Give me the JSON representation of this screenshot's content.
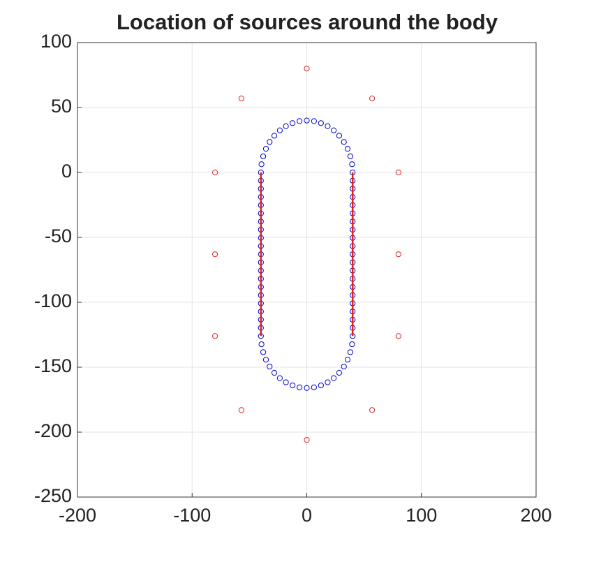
{
  "chart_data": {
    "type": "scatter",
    "title": "Location of sources around the body",
    "xlim": [
      -200,
      200
    ],
    "xticks": [
      -200,
      -100,
      0,
      100,
      200
    ],
    "ylim": [
      -250,
      100
    ],
    "yticks": [
      -250,
      -200,
      -150,
      -100,
      -50,
      0,
      50,
      100
    ],
    "grid": true,
    "series": [
      {
        "color": "#0000cc",
        "marker": "circle",
        "x": [
          40,
          39.5,
          38.0,
          35.6,
          32.4,
          28.3,
          23.5,
          18.2,
          12.4,
          6.3,
          0,
          -6.3,
          -12.4,
          -18.2,
          -23.5,
          -28.3,
          -32.4,
          -35.6,
          -38.0,
          -39.5,
          -40,
          -40,
          -40,
          -40,
          -40,
          -40,
          -40,
          -40,
          -40,
          -40,
          -40,
          -40,
          -40,
          -40,
          -40,
          -40,
          -40,
          -40,
          -40,
          -40,
          -40,
          -39.5,
          -38.0,
          -35.6,
          -32.4,
          -28.3,
          -23.5,
          -18.2,
          -12.4,
          -6.3,
          0,
          6.3,
          12.4,
          18.2,
          23.5,
          28.3,
          32.4,
          35.6,
          38.0,
          39.5,
          40,
          40,
          40,
          40,
          40,
          40,
          40,
          40,
          40,
          40,
          40,
          40,
          40,
          40,
          40,
          40,
          40,
          40,
          40,
          40
        ],
        "y": [
          0,
          6.3,
          12.4,
          18.2,
          23.5,
          28.3,
          32.4,
          35.6,
          38.0,
          39.5,
          40,
          39.5,
          38.0,
          35.6,
          32.4,
          28.3,
          23.5,
          18.2,
          12.4,
          6.3,
          0,
          -6.3,
          -12.6,
          -18.9,
          -25.2,
          -31.5,
          -37.8,
          -44.1,
          -50.4,
          -56.7,
          -63,
          -69.3,
          -75.6,
          -81.9,
          -88.2,
          -94.5,
          -100.8,
          -107.1,
          -113.4,
          -119.7,
          -126,
          -132.3,
          -138.4,
          -144.2,
          -149.5,
          -154.3,
          -158.4,
          -161.6,
          -164.0,
          -165.5,
          -166,
          -165.5,
          -164.0,
          -161.6,
          -158.4,
          -154.3,
          -149.5,
          -144.2,
          -138.4,
          -132.3,
          -126,
          -119.7,
          -113.4,
          -107.1,
          -100.8,
          -94.5,
          -88.2,
          -81.9,
          -75.6,
          -69.3,
          -63,
          -56.7,
          -50.4,
          -44.1,
          -37.8,
          -31.5,
          -25.2,
          -18.9,
          -12.6,
          -6.3
        ]
      },
      {
        "color": "#dd2222",
        "marker": "circle",
        "x": [
          0,
          57,
          80,
          80,
          80,
          57,
          0,
          -57,
          -80,
          -80,
          -80,
          -57
        ],
        "y": [
          80,
          57,
          0,
          -63,
          -126,
          -183,
          -206,
          -183,
          -126,
          -63,
          0,
          57
        ]
      },
      {
        "color": "#dd2222",
        "marker": "line",
        "x": [
          -40,
          -40
        ],
        "y": [
          0,
          -126
        ]
      },
      {
        "color": "#dd2222",
        "marker": "line",
        "x": [
          40,
          40
        ],
        "y": [
          0,
          -126
        ]
      }
    ]
  }
}
